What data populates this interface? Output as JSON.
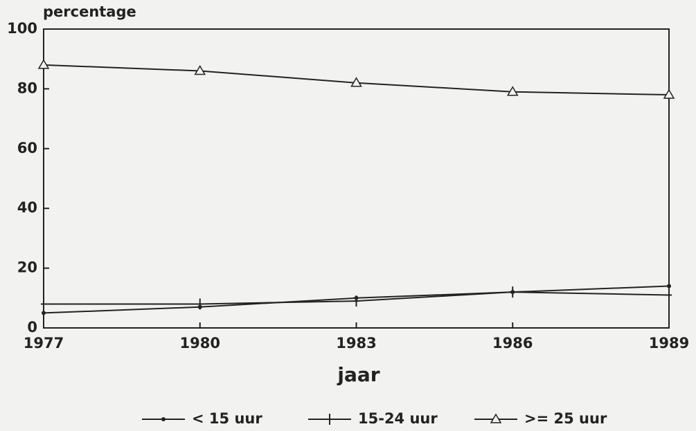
{
  "chart_data": {
    "type": "line",
    "y_label": "percentage",
    "x_label": "jaar",
    "x": [
      1977,
      1980,
      1983,
      1986,
      1989
    ],
    "xlim": [
      1977,
      1989
    ],
    "xticks": [
      1977,
      1980,
      1983,
      1986,
      1989
    ],
    "ylim": [
      0,
      100
    ],
    "yticks": [
      0,
      20,
      40,
      60,
      80,
      100
    ],
    "series": [
      {
        "name": "< 15 uur",
        "color": "#222222",
        "marker": "dot",
        "values": [
          5,
          7,
          10,
          12,
          14
        ]
      },
      {
        "name": "15-24 uur",
        "color": "#222222",
        "marker": "plus",
        "values": [
          8,
          8,
          9,
          12,
          11
        ]
      },
      {
        "name": ">= 25 uur",
        "color": "#222222",
        "marker": "triangle",
        "values": [
          88,
          86,
          82,
          79,
          78
        ]
      }
    ],
    "legend": "bottom"
  }
}
